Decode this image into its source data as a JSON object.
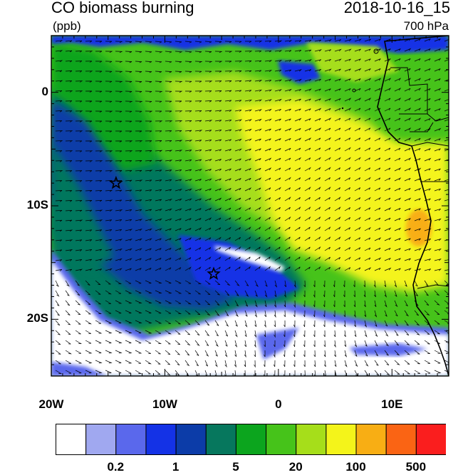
{
  "header": {
    "title": "CO biomass burning",
    "datetime": "2018-10-16_15",
    "units": "(ppb)",
    "level": "700 hPa"
  },
  "map": {
    "lon_range": [
      -20,
      15
    ],
    "lat_range": [
      -25,
      5
    ],
    "lat_ticks": [
      {
        "lat": 0,
        "label": "0"
      },
      {
        "lat": -10,
        "label": "10S"
      },
      {
        "lat": -20,
        "label": "20S"
      }
    ],
    "lon_ticks": [
      {
        "lon": -20,
        "label": "20W"
      },
      {
        "lon": -10,
        "label": "10W"
      },
      {
        "lon": 0,
        "label": "0"
      },
      {
        "lon": 10,
        "label": "10E"
      }
    ],
    "markers": [
      {
        "name": "star-marker",
        "lon": -14.3,
        "lat": -8.0
      },
      {
        "name": "star-marker",
        "lon": -5.7,
        "lat": -16.0
      }
    ],
    "wind_vectors": "shown"
  },
  "colorbar": {
    "colors": [
      "#ffffff",
      "#a0a8f0",
      "#5a68ec",
      "#1432e6",
      "#0c3ca8",
      "#06775d",
      "#0ca51e",
      "#46c31a",
      "#a6de1a",
      "#f4f41a",
      "#f8ae14",
      "#fa6414",
      "#fa1e1e"
    ],
    "labels": [
      {
        "after_box": 2,
        "text": "0.2"
      },
      {
        "after_box": 4,
        "text": "1"
      },
      {
        "after_box": 6,
        "text": "5"
      },
      {
        "after_box": 8,
        "text": "20"
      },
      {
        "after_box": 10,
        "text": "100"
      },
      {
        "after_box": 12,
        "text": "500"
      }
    ]
  }
}
